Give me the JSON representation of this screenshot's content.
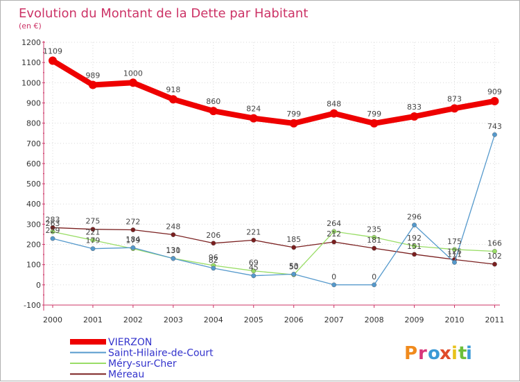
{
  "chart_data": {
    "type": "line",
    "title": "Evolution du Montant de la Dette par Habitant",
    "subtitle": "(en €)",
    "x": [
      "2000",
      "2001",
      "2002",
      "2003",
      "2004",
      "2005",
      "2006",
      "2007",
      "2008",
      "2009",
      "2010",
      "2011"
    ],
    "yticks": [
      1200,
      1100,
      1000,
      900,
      800,
      700,
      600,
      500,
      400,
      300,
      200,
      100,
      0,
      -100
    ],
    "ylim": [
      -100,
      1200
    ],
    "grid": true,
    "legend_position": "bottom-left",
    "series": [
      {
        "name": "VIERZON",
        "color": "#ee0000",
        "values": [
          1109,
          989,
          1000,
          918,
          860,
          824,
          799,
          848,
          799,
          833,
          873,
          909
        ]
      },
      {
        "name": "Saint-Hilaire-de-Court",
        "color": "#5599cc",
        "values": [
          229,
          179,
          184,
          130,
          82,
          45,
          53,
          0,
          0,
          296,
          111,
          743
        ]
      },
      {
        "name": "Méry-sur-Cher",
        "color": "#99dd66",
        "values": [
          263,
          221,
          179,
          131,
          96,
          69,
          50,
          264,
          235,
          192,
          175,
          166
        ]
      },
      {
        "name": "Méreau",
        "color": "#7a1f1f",
        "values": [
          283,
          275,
          272,
          248,
          206,
          221,
          185,
          212,
          181,
          151,
          125,
          102
        ]
      }
    ]
  },
  "logo": {
    "text": "Proxiti",
    "letters": [
      "P",
      "r",
      "o",
      "x",
      "i",
      "t",
      "i"
    ],
    "colors": [
      "#f08a1c",
      "#d8367a",
      "#3c9ad6",
      "#e04b2a",
      "#e8c21c",
      "#6cbf3a",
      "#3c9ad6"
    ]
  }
}
